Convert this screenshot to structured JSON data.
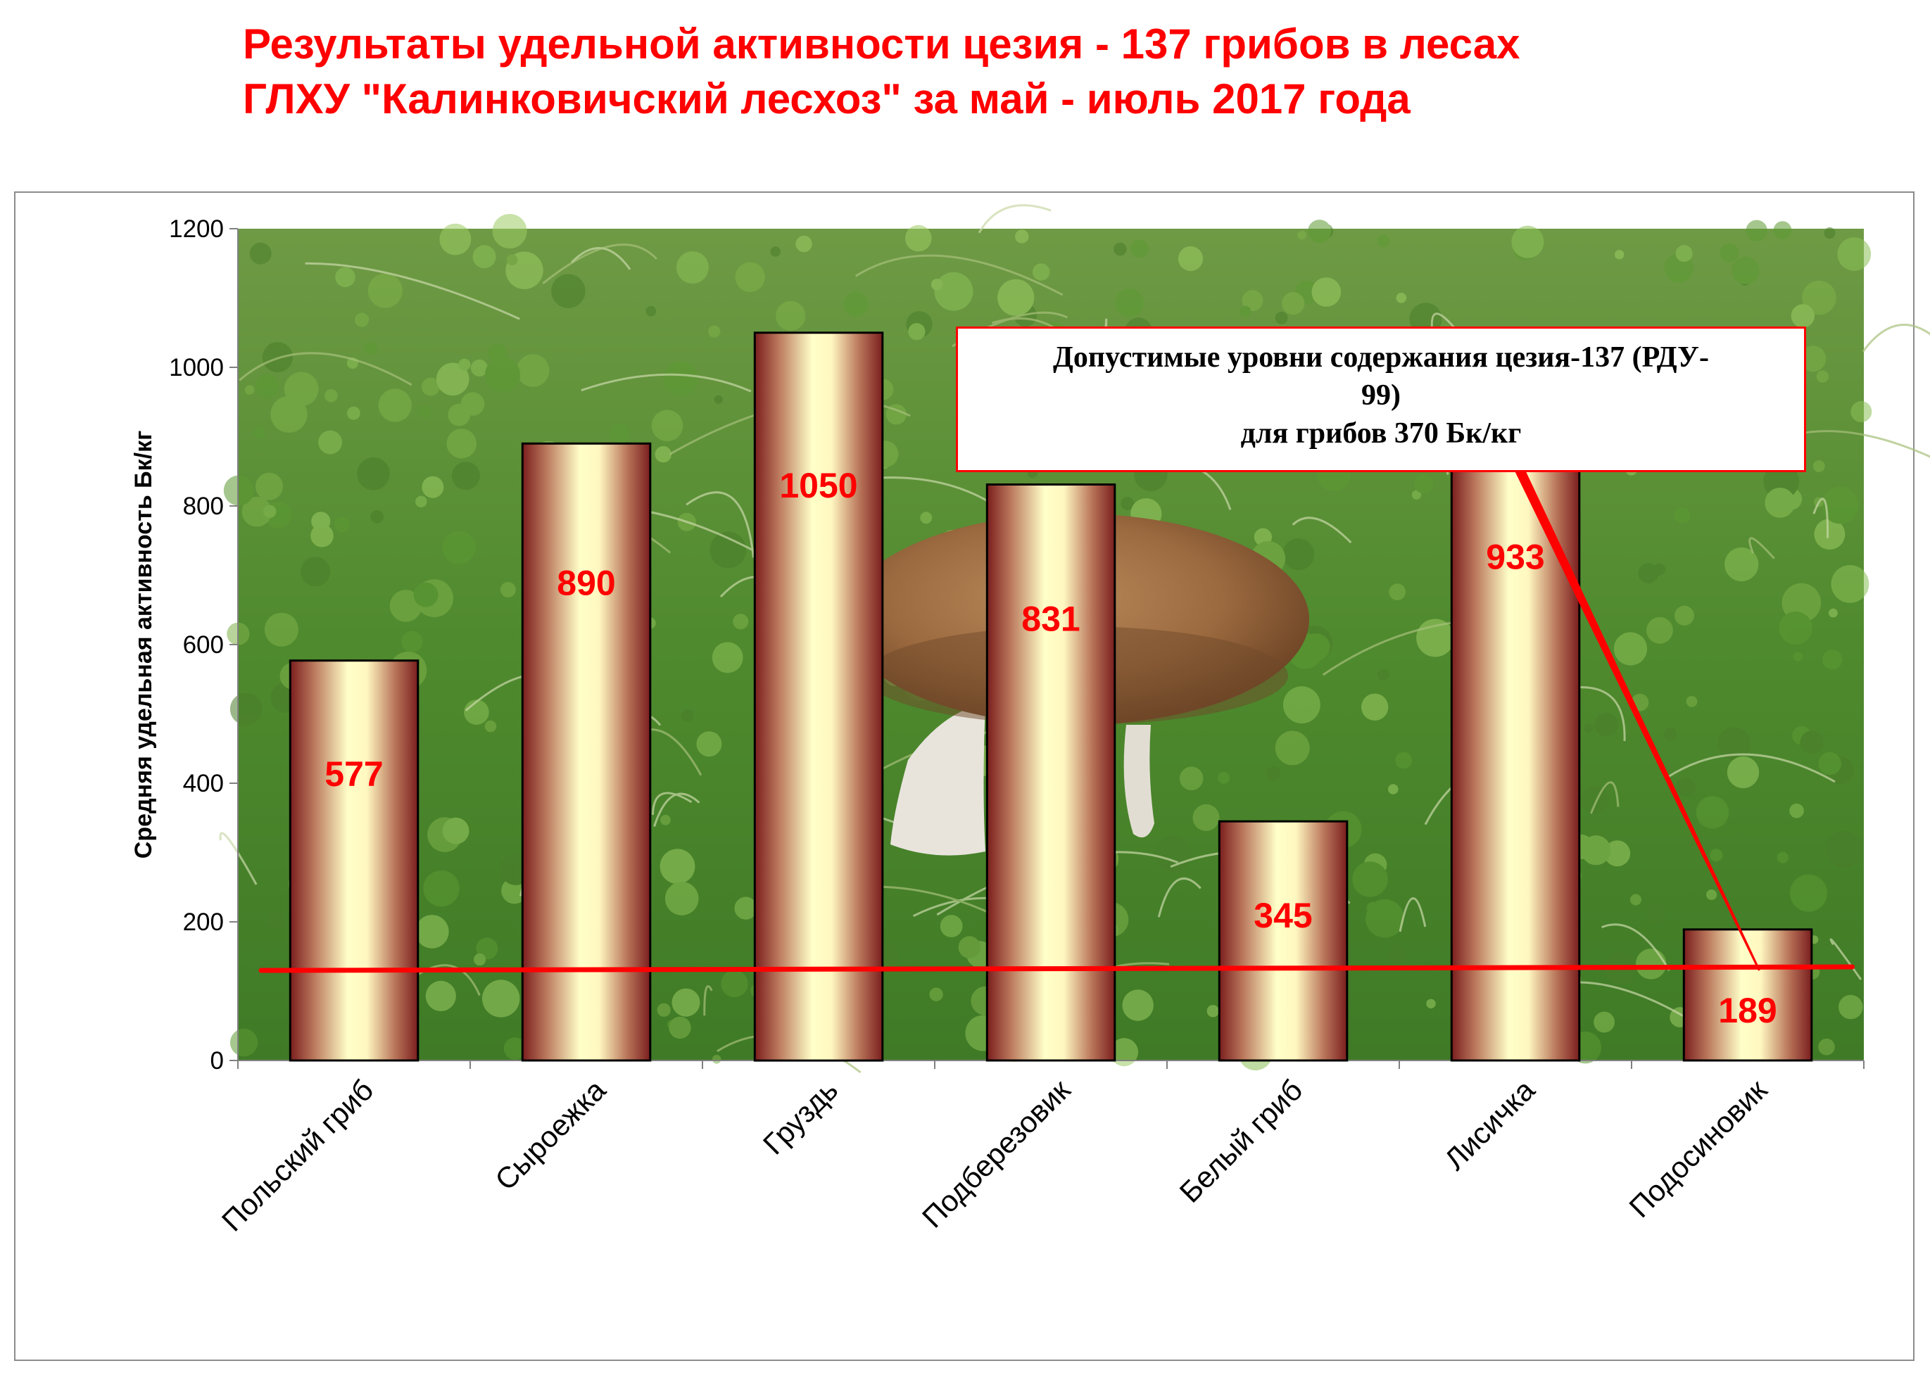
{
  "title": {
    "line1": "Результаты удельной активности цезия - 137 грибов в лесах",
    "line2": "ГЛХУ \"Калинковичский лесхоз\" за май - июль 2017 года"
  },
  "note": {
    "line1": "Допустимые уровни содержания цезия-137 (РДУ-",
    "line2": "99)",
    "line3": "для грибов 370 Бк/кг"
  },
  "colors": {
    "title": "#ff0000",
    "data_label": "#ff0000",
    "limit_line": "#ff0000",
    "bar_edge": "#7a1e1e",
    "bar_center": "#ffffc8"
  },
  "chart_data": {
    "type": "bar",
    "title": "Результаты удельной активности цезия - 137 грибов в лесах ГЛХУ \"Калинковичский лесхоз\" за май - июль 2017 года",
    "ylabel": "Средняя удельная активность Бк/кг",
    "xlabel": "",
    "ylim": [
      0,
      1200
    ],
    "yticks": [
      0,
      200,
      400,
      600,
      800,
      1000,
      1200
    ],
    "categories": [
      "Польский гриб",
      "Сыроежка",
      "Груздь",
      "Подберезовик",
      "Белый гриб",
      "Лисичка",
      "Подосиновик"
    ],
    "values": [
      577,
      890,
      1050,
      831,
      345,
      933,
      189
    ],
    "data_labels": [
      "577",
      "890",
      "1050",
      "831",
      "345",
      "933",
      "189"
    ],
    "reference_line": {
      "y_start": 130,
      "y_end": 135
    },
    "background": "photo of a mushroom on forest moss",
    "grid": false,
    "legend": "none"
  }
}
